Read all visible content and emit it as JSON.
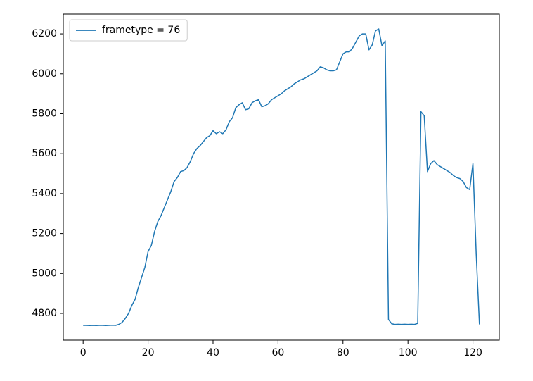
{
  "chart_data": {
    "type": "line",
    "x": [
      0,
      1,
      2,
      3,
      4,
      5,
      6,
      7,
      8,
      9,
      10,
      11,
      12,
      13,
      14,
      15,
      16,
      17,
      18,
      19,
      20,
      21,
      22,
      23,
      24,
      25,
      26,
      27,
      28,
      29,
      30,
      31,
      32,
      33,
      34,
      35,
      36,
      37,
      38,
      39,
      40,
      41,
      42,
      43,
      44,
      45,
      46,
      47,
      48,
      49,
      50,
      51,
      52,
      53,
      54,
      55,
      56,
      57,
      58,
      59,
      60,
      61,
      62,
      63,
      64,
      65,
      66,
      67,
      68,
      69,
      70,
      71,
      72,
      73,
      74,
      75,
      76,
      77,
      78,
      79,
      80,
      81,
      82,
      83,
      84,
      85,
      86,
      87,
      88,
      89,
      90,
      91,
      92,
      93,
      94,
      95,
      96,
      97,
      98,
      99,
      100,
      101,
      102,
      103,
      104,
      105,
      106,
      107,
      108,
      109,
      110,
      111,
      112,
      113,
      114,
      115,
      116,
      117,
      118,
      119,
      120,
      121,
      122
    ],
    "series": [
      {
        "name": "frametype = 76",
        "color": "#1f77b4",
        "values": [
          4740,
          4740,
          4739,
          4740,
          4739,
          4740,
          4740,
          4739,
          4740,
          4741,
          4740,
          4745,
          4755,
          4775,
          4800,
          4840,
          4870,
          4930,
          4980,
          5030,
          5110,
          5140,
          5210,
          5260,
          5290,
          5330,
          5370,
          5410,
          5460,
          5480,
          5510,
          5515,
          5530,
          5560,
          5600,
          5625,
          5640,
          5660,
          5680,
          5690,
          5715,
          5700,
          5710,
          5700,
          5720,
          5760,
          5780,
          5830,
          5845,
          5855,
          5820,
          5825,
          5855,
          5865,
          5870,
          5835,
          5840,
          5850,
          5870,
          5880,
          5890,
          5900,
          5915,
          5925,
          5935,
          5950,
          5960,
          5970,
          5975,
          5985,
          5995,
          6005,
          6015,
          6035,
          6030,
          6020,
          6015,
          6015,
          6020,
          6060,
          6100,
          6110,
          6110,
          6130,
          6160,
          6190,
          6200,
          6200,
          6120,
          6145,
          6215,
          6225,
          6140,
          6165,
          4770,
          4748,
          4745,
          4746,
          4745,
          4746,
          4745,
          4746,
          4745,
          4750,
          5810,
          5790,
          5510,
          5550,
          5565,
          5545,
          5535,
          5525,
          5515,
          5505,
          5490,
          5480,
          5475,
          5460,
          5430,
          5420,
          5550,
          5100,
          4745
        ]
      }
    ],
    "xlim": [
      -6.1,
      128.1
    ],
    "ylim": [
      4666,
      6299
    ],
    "xticks": [
      0,
      20,
      40,
      60,
      80,
      100,
      120
    ],
    "yticks": [
      4800,
      5000,
      5200,
      5400,
      5600,
      5800,
      6000,
      6200
    ],
    "legend": "upper left"
  }
}
